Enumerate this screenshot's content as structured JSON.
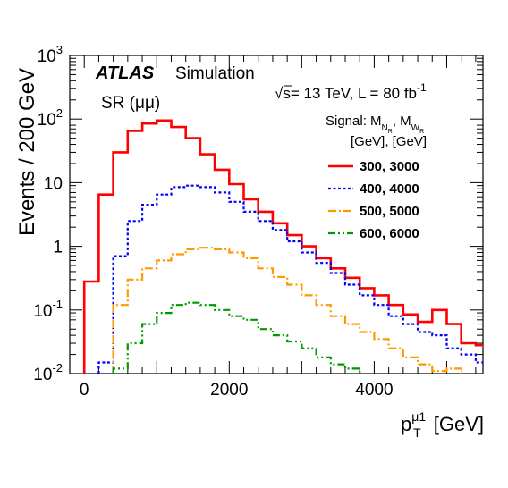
{
  "chart_data": {
    "type": "line",
    "step": true,
    "scale_y": "log",
    "xlim": [
      -200,
      5500
    ],
    "ylim": [
      0.01,
      1000
    ],
    "x_edges": [
      0,
      200,
      400,
      600,
      800,
      1000,
      1200,
      1400,
      1600,
      1800,
      2000,
      2200,
      2400,
      2600,
      2800,
      3000,
      3200,
      3400,
      3600,
      3800,
      4000,
      4200,
      4400,
      4600,
      4800,
      5000,
      5200,
      5400,
      5600
    ],
    "x_ticks": [
      0,
      2000,
      4000
    ],
    "x_tick_labels": [
      "0",
      "2000",
      "4000"
    ],
    "y_ticks": [
      0.01,
      0.1,
      1,
      10,
      100,
      1000
    ],
    "y_tick_labels": [
      {
        "base": "10",
        "exp": "-2"
      },
      {
        "base": "10",
        "exp": "-1"
      },
      {
        "base": "1",
        "exp": ""
      },
      {
        "base": "10",
        "exp": ""
      },
      {
        "base": "10",
        "exp": "2"
      },
      {
        "base": "10",
        "exp": "3"
      }
    ],
    "ylabel": "Events / 200 GeV",
    "xlabel": {
      "main": "p",
      "sub": "T",
      "sup": "μ1",
      "unit": " [GeV]"
    },
    "atlas_label": "ATLAS",
    "atlas_suffix": "Simulation",
    "region_label": "SR (μμ)",
    "energy_label": {
      "sqrt": "√",
      "s": "s",
      "rest": "= 13 TeV, L = 80 fb",
      "sup": "-1"
    },
    "legend_header_1": {
      "pre": "Signal: M",
      "sub1": "N",
      "sub1b": "R",
      "mid": ", M",
      "sub2": "W",
      "sub2b": "R"
    },
    "legend_header_2": "[GeV], [GeV]",
    "legend_position": "top-right",
    "series": [
      {
        "name": "300, 3000",
        "color": "#ff0000",
        "style": "solid",
        "values": [
          0.28,
          6.5,
          30,
          65,
          85,
          95,
          75,
          50,
          28,
          16,
          9.5,
          5.5,
          3.5,
          2.3,
          1.5,
          1.0,
          0.65,
          0.45,
          0.32,
          0.22,
          0.17,
          0.12,
          0.085,
          0.065,
          0.1,
          0.06,
          0.03,
          0.028
        ]
      },
      {
        "name": "400, 4000",
        "color": "#0000ff",
        "style": "dotted",
        "values": [
          0.0,
          0.015,
          0.7,
          2.5,
          4.5,
          6.5,
          8.5,
          9.0,
          8.5,
          7.0,
          5.0,
          3.5,
          2.5,
          1.8,
          1.2,
          0.8,
          0.55,
          0.38,
          0.25,
          0.17,
          0.12,
          0.08,
          0.06,
          0.045,
          0.04,
          0.025,
          0.02,
          0.015
        ]
      },
      {
        "name": "500, 5000",
        "color": "#ff9900",
        "style": "dashdot",
        "values": [
          0.0,
          0.0,
          0.12,
          0.3,
          0.45,
          0.6,
          0.75,
          0.9,
          0.95,
          0.9,
          0.8,
          0.65,
          0.45,
          0.33,
          0.25,
          0.17,
          0.12,
          0.08,
          0.06,
          0.045,
          0.035,
          0.025,
          0.018,
          0.014,
          0.011,
          0.012,
          0.0,
          0.0
        ]
      },
      {
        "name": "600, 6000",
        "color": "#009900",
        "style": "dashdotdot",
        "values": [
          0.0,
          0.0,
          0.012,
          0.03,
          0.06,
          0.09,
          0.12,
          0.13,
          0.12,
          0.1,
          0.08,
          0.07,
          0.05,
          0.04,
          0.032,
          0.025,
          0.018,
          0.014,
          0.012,
          0.0,
          0.0,
          0.0,
          0.0,
          0.0,
          0.0,
          0.0,
          0.0,
          0.0
        ]
      }
    ]
  }
}
